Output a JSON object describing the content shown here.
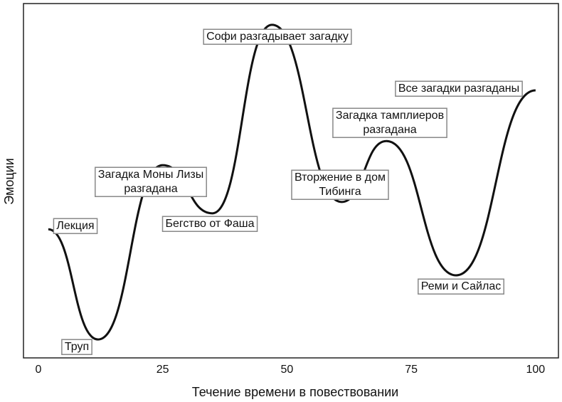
{
  "chart_data": {
    "type": "line",
    "x_label": "Течение времени в повествовании",
    "y_label": "Эмоции",
    "x": [
      2,
      12,
      25,
      35,
      47,
      61,
      70,
      84,
      100
    ],
    "series": [
      {
        "color": "#111111",
        "values": [
          36.3,
          5.2,
          54.4,
          40.8,
          94,
          44,
          61.2,
          23.3,
          75.5
        ]
      }
    ],
    "xlim": [
      -3,
      104.6
    ],
    "xticks": [
      0,
      25,
      50,
      75,
      100
    ],
    "ylim": [
      0,
      100
    ],
    "annotations": [
      [
        "Лекция"
      ],
      [
        "Труп"
      ],
      [
        "Загадка Моны Лизы",
        "разгадана"
      ],
      [
        "Бегство от Фаша"
      ],
      [
        "Софи разгадывает загадку"
      ],
      [
        "Вторжение в дом",
        "Тибинга"
      ],
      [
        "Загадка тамплиеров",
        "разгадана"
      ],
      [
        "Реми и Сайлас"
      ],
      [
        "Все загадки разгаданы"
      ]
    ]
  }
}
